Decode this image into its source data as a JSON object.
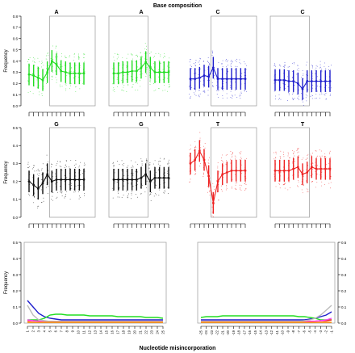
{
  "figure_title": "Base composition",
  "bottom_xlabel": "Nucleotide misincorporation",
  "colors": {
    "A": "#22dd22",
    "C": "#1e1ecc",
    "G": "#111111",
    "T": "#ee2222",
    "frame": "#999999"
  },
  "chart_data": [
    {
      "type": "line",
      "title": "A",
      "ylabel": "Frequency",
      "ylim": [
        0,
        0.8
      ],
      "yticks": [
        0.0,
        0.1,
        0.2,
        0.3,
        0.4,
        0.5,
        0.6,
        0.7,
        0.8
      ],
      "y": [
        0.28,
        0.27,
        0.25,
        0.23,
        0.3,
        0.4,
        0.37,
        0.31,
        0.3,
        0.29,
        0.29,
        0.29,
        0.29
      ]
    },
    {
      "type": "line",
      "title": "A",
      "ylim": [
        0,
        0.8
      ],
      "y": [
        0.29,
        0.29,
        0.3,
        0.3,
        0.31,
        0.31,
        0.34,
        0.39,
        0.34,
        0.3,
        0.3,
        0.3,
        0.3
      ]
    },
    {
      "type": "line",
      "title": "C",
      "ylim": [
        0,
        0.8
      ],
      "y": [
        0.24,
        0.24,
        0.25,
        0.27,
        0.26,
        0.34,
        0.24,
        0.24,
        0.24,
        0.24,
        0.24,
        0.24,
        0.24
      ]
    },
    {
      "type": "line",
      "title": "C",
      "ylim": [
        0,
        0.8
      ],
      "y": [
        0.23,
        0.23,
        0.23,
        0.22,
        0.22,
        0.2,
        0.15,
        0.22,
        0.22,
        0.22,
        0.22,
        0.22,
        0.22
      ]
    },
    {
      "type": "line",
      "title": "G",
      "ylabel": "Frequency",
      "ylim": [
        0,
        0.5
      ],
      "yticks": [
        0.0,
        0.1,
        0.2,
        0.3,
        0.4,
        0.5
      ],
      "y": [
        0.2,
        0.18,
        0.16,
        0.19,
        0.24,
        0.2,
        0.21,
        0.21,
        0.21,
        0.21,
        0.21,
        0.21,
        0.21
      ]
    },
    {
      "type": "line",
      "title": "G",
      "ylim": [
        0,
        0.5
      ],
      "y": [
        0.21,
        0.21,
        0.21,
        0.21,
        0.21,
        0.21,
        0.22,
        0.24,
        0.2,
        0.22,
        0.22,
        0.22,
        0.22
      ]
    },
    {
      "type": "line",
      "title": "T",
      "ylim": [
        0,
        0.5
      ],
      "y": [
        0.3,
        0.32,
        0.37,
        0.32,
        0.23,
        0.08,
        0.2,
        0.24,
        0.25,
        0.26,
        0.26,
        0.26,
        0.26
      ]
    },
    {
      "type": "line",
      "title": "T",
      "ylim": [
        0,
        0.5
      ],
      "y": [
        0.26,
        0.26,
        0.26,
        0.26,
        0.27,
        0.28,
        0.24,
        0.25,
        0.28,
        0.27,
        0.27,
        0.27,
        0.27
      ]
    },
    {
      "type": "line",
      "ylabel": "Frequency",
      "ylim": [
        0,
        0.5
      ],
      "yticks": [
        0.0,
        0.1,
        0.2,
        0.3,
        0.4,
        0.5
      ],
      "x_ticks": [
        "1",
        "2",
        "3",
        "4",
        "5",
        "6",
        "7",
        "8",
        "9",
        "10",
        "11",
        "12",
        "13",
        "14",
        "15",
        "16",
        "17",
        "18",
        "19",
        "20",
        "21",
        "22",
        "23",
        "24",
        "25"
      ],
      "series": [
        {
          "color": "#1e1ecc",
          "values": [
            0.14,
            0.1,
            0.06,
            0.04,
            0.03,
            0.025,
            0.02,
            0.02,
            0.02,
            0.02,
            0.02,
            0.02,
            0.02,
            0.02,
            0.02,
            0.02,
            0.02,
            0.02,
            0.02,
            0.02,
            0.02,
            0.02,
            0.02,
            0.02,
            0.02
          ]
        },
        {
          "color": "#22dd22",
          "values": [
            0.02,
            0.02,
            0.02,
            0.03,
            0.05,
            0.055,
            0.055,
            0.05,
            0.05,
            0.05,
            0.05,
            0.045,
            0.045,
            0.045,
            0.045,
            0.045,
            0.04,
            0.04,
            0.04,
            0.04,
            0.04,
            0.035,
            0.035,
            0.035,
            0.03
          ]
        },
        {
          "color": "#ee2222",
          "values": [
            0.015,
            0.015,
            0.012,
            0.012,
            0.01,
            0.01,
            0.01,
            0.01,
            0.01,
            0.01,
            0.01,
            0.01,
            0.01,
            0.01,
            0.01,
            0.01,
            0.01,
            0.01,
            0.01,
            0.01,
            0.01,
            0.01,
            0.01,
            0.01,
            0.01
          ]
        },
        {
          "color": "#ff44ff",
          "values": [
            0.02,
            0.015,
            0.012,
            0.012,
            0.01,
            0.01,
            0.01,
            0.01,
            0.01,
            0.01,
            0.01,
            0.01,
            0.01,
            0.01,
            0.01,
            0.01,
            0.01,
            0.01,
            0.01,
            0.01,
            0.01,
            0.01,
            0.01,
            0.01,
            0.01
          ]
        },
        {
          "color": "#bbbbbb",
          "values": [
            0.11,
            0.05,
            0.02,
            0.015,
            0.01,
            0.01,
            0.01,
            0.01,
            0.01,
            0.01,
            0.01,
            0.01,
            0.01,
            0.01,
            0.01,
            0.01,
            0.01,
            0.01,
            0.01,
            0.01,
            0.01,
            0.01,
            0.01,
            0.01,
            0.01
          ]
        },
        {
          "color": "#ff8800",
          "values": [
            0.005,
            0.005,
            0.005,
            0.005,
            0.005,
            0.005,
            0.005,
            0.005,
            0.005,
            0.005,
            0.005,
            0.005,
            0.005,
            0.005,
            0.005,
            0.005,
            0.005,
            0.005,
            0.005,
            0.005,
            0.005,
            0.005,
            0.005,
            0.005,
            0.005
          ]
        }
      ]
    },
    {
      "type": "line",
      "ylim": [
        0,
        0.5
      ],
      "yticks": [
        0.0,
        0.1,
        0.2,
        0.3,
        0.4,
        0.5
      ],
      "x_ticks": [
        "-25",
        "-24",
        "-23",
        "-22",
        "-21",
        "-20",
        "-19",
        "-18",
        "-17",
        "-16",
        "-15",
        "-14",
        "-13",
        "-12",
        "-11",
        "-10",
        "-9",
        "-8",
        "-7",
        "-6",
        "-5",
        "-4",
        "-3",
        "-2",
        "-1"
      ],
      "series": [
        {
          "color": "#1e1ecc",
          "values": [
            0.02,
            0.02,
            0.02,
            0.02,
            0.02,
            0.02,
            0.02,
            0.02,
            0.02,
            0.02,
            0.02,
            0.02,
            0.02,
            0.02,
            0.02,
            0.02,
            0.02,
            0.02,
            0.02,
            0.02,
            0.025,
            0.03,
            0.04,
            0.05,
            0.07
          ]
        },
        {
          "color": "#22dd22",
          "values": [
            0.035,
            0.04,
            0.04,
            0.04,
            0.045,
            0.045,
            0.045,
            0.045,
            0.045,
            0.045,
            0.045,
            0.045,
            0.045,
            0.045,
            0.045,
            0.045,
            0.045,
            0.045,
            0.04,
            0.04,
            0.035,
            0.03,
            0.02,
            0.02,
            0.02
          ]
        },
        {
          "color": "#ee2222",
          "values": [
            0.01,
            0.01,
            0.01,
            0.01,
            0.01,
            0.01,
            0.01,
            0.01,
            0.01,
            0.01,
            0.01,
            0.01,
            0.01,
            0.01,
            0.01,
            0.01,
            0.01,
            0.01,
            0.01,
            0.01,
            0.01,
            0.012,
            0.015,
            0.015,
            0.02
          ]
        },
        {
          "color": "#ff44ff",
          "values": [
            0.01,
            0.01,
            0.01,
            0.01,
            0.01,
            0.01,
            0.01,
            0.01,
            0.01,
            0.01,
            0.01,
            0.01,
            0.01,
            0.01,
            0.01,
            0.01,
            0.01,
            0.01,
            0.01,
            0.01,
            0.012,
            0.012,
            0.015,
            0.02,
            0.03
          ]
        },
        {
          "color": "#bbbbbb",
          "values": [
            0.01,
            0.01,
            0.01,
            0.01,
            0.01,
            0.01,
            0.01,
            0.01,
            0.01,
            0.01,
            0.01,
            0.01,
            0.01,
            0.01,
            0.01,
            0.01,
            0.01,
            0.01,
            0.01,
            0.015,
            0.02,
            0.03,
            0.05,
            0.08,
            0.11
          ]
        },
        {
          "color": "#ff8800",
          "values": [
            0.005,
            0.005,
            0.005,
            0.005,
            0.005,
            0.005,
            0.005,
            0.005,
            0.005,
            0.005,
            0.005,
            0.005,
            0.005,
            0.005,
            0.005,
            0.005,
            0.005,
            0.005,
            0.005,
            0.005,
            0.005,
            0.005,
            0.005,
            0.005,
            0.005
          ]
        }
      ]
    }
  ]
}
